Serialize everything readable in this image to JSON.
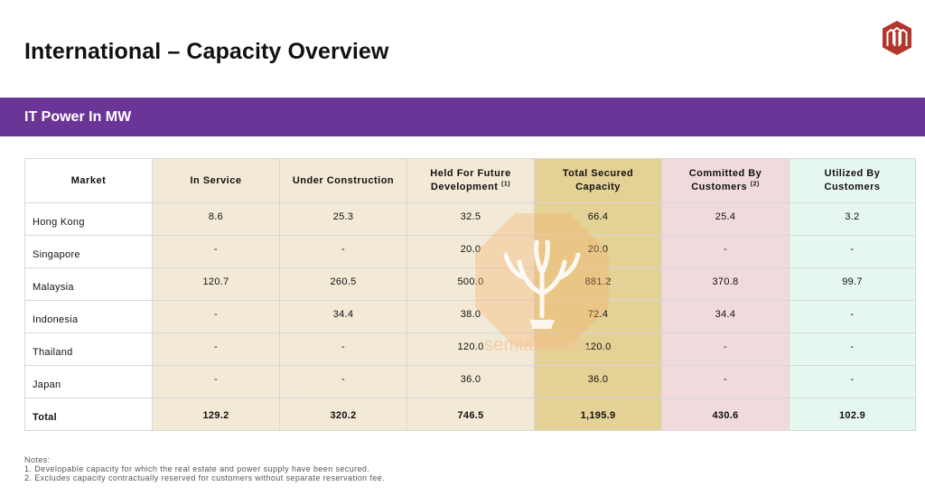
{
  "title": "International – Capacity Overview",
  "section": "IT Power In MW",
  "colors": {
    "band": "#6b3598",
    "market_bg": "#ffffff",
    "in_service_bg": "#f2ead6",
    "under_construction_bg": "#f2ead6",
    "held_bg": "#f2ead6",
    "total_secured_bg": "#e4d195",
    "committed_bg": "#f1dadb",
    "utilized_bg": "#e6f7ef",
    "logo": "#b3362c"
  },
  "table": {
    "headers": [
      {
        "label": "Market"
      },
      {
        "label": "In Service"
      },
      {
        "label": "Under Construction"
      },
      {
        "label": "Held For Future",
        "label2": "Development",
        "note": "(1)"
      },
      {
        "label": "Total Secured",
        "label2": "Capacity"
      },
      {
        "label": "Committed By",
        "label2": "Customers",
        "note": "(2)"
      },
      {
        "label": "Utilized By Customers"
      }
    ],
    "rows": [
      {
        "market": "Hong Kong",
        "in_service": "8.6",
        "under_construction": "25.3",
        "held": "32.5",
        "total_secured": "66.4",
        "committed": "25.4",
        "utilized": "3.2"
      },
      {
        "market": "Singapore",
        "in_service": "-",
        "under_construction": "-",
        "held": "20.0",
        "total_secured": "20.0",
        "committed": "-",
        "utilized": "-"
      },
      {
        "market": "Malaysia",
        "in_service": "120.7",
        "under_construction": "260.5",
        "held": "500.0",
        "total_secured": "881.2",
        "committed": "370.8",
        "utilized": "99.7"
      },
      {
        "market": "Indonesia",
        "in_service": "-",
        "under_construction": "34.4",
        "held": "38.0",
        "total_secured": "72.4",
        "committed": "34.4",
        "utilized": "-"
      },
      {
        "market": "Thailand",
        "in_service": "-",
        "under_construction": "-",
        "held": "120.0",
        "total_secured": "120.0",
        "committed": "-",
        "utilized": "-"
      },
      {
        "market": "Japan",
        "in_service": "-",
        "under_construction": "-",
        "held": "36.0",
        "total_secured": "36.0",
        "committed": "-",
        "utilized": "-"
      }
    ],
    "total": {
      "market": "Total",
      "in_service": "129.2",
      "under_construction": "320.2",
      "held": "746.5",
      "total_secured": "1,195.9",
      "committed": "430.6",
      "utilized": "102.9"
    }
  },
  "watermark": "semianalysis",
  "notes": {
    "heading": "Notes:",
    "items": [
      "1.  Developable capacity for which the real estate and power supply have been secured.",
      "2.  Excludes capacity contractually reserved for customers without separate reservation fee."
    ]
  }
}
